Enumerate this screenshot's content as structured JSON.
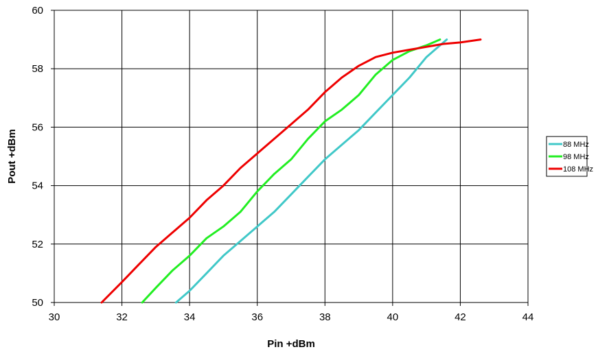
{
  "chart_data": {
    "type": "line",
    "xlabel": "Pin +dBm",
    "ylabel": "Pout +dBm",
    "xlim": [
      30,
      44
    ],
    "ylim": [
      50,
      60
    ],
    "xticks": [
      30,
      32,
      34,
      36,
      38,
      40,
      42,
      44
    ],
    "yticks": [
      50,
      52,
      54,
      56,
      58,
      60
    ],
    "grid": true,
    "legend_position": "right",
    "series": [
      {
        "name": "88 MHz",
        "color": "#40c8c8",
        "points": [
          [
            33.6,
            50.0
          ],
          [
            34.0,
            50.4
          ],
          [
            34.5,
            51.0
          ],
          [
            35.0,
            51.6
          ],
          [
            35.5,
            52.1
          ],
          [
            36.0,
            52.6
          ],
          [
            36.5,
            53.1
          ],
          [
            37.0,
            53.7
          ],
          [
            37.5,
            54.3
          ],
          [
            38.0,
            54.9
          ],
          [
            38.5,
            55.4
          ],
          [
            39.0,
            55.9
          ],
          [
            39.5,
            56.5
          ],
          [
            40.0,
            57.1
          ],
          [
            40.5,
            57.7
          ],
          [
            41.0,
            58.4
          ],
          [
            41.3,
            58.7
          ],
          [
            41.6,
            59.0
          ]
        ]
      },
      {
        "name": "98 MHz",
        "color": "#22ee22",
        "points": [
          [
            32.6,
            50.0
          ],
          [
            33.0,
            50.5
          ],
          [
            33.5,
            51.1
          ],
          [
            34.0,
            51.6
          ],
          [
            34.5,
            52.2
          ],
          [
            35.0,
            52.6
          ],
          [
            35.5,
            53.1
          ],
          [
            36.0,
            53.8
          ],
          [
            36.5,
            54.4
          ],
          [
            37.0,
            54.9
          ],
          [
            37.5,
            55.6
          ],
          [
            38.0,
            56.2
          ],
          [
            38.5,
            56.6
          ],
          [
            39.0,
            57.1
          ],
          [
            39.5,
            57.8
          ],
          [
            40.0,
            58.3
          ],
          [
            40.5,
            58.6
          ],
          [
            41.0,
            58.8
          ],
          [
            41.4,
            59.0
          ]
        ]
      },
      {
        "name": "108 MHz",
        "color": "#ee0000",
        "points": [
          [
            31.4,
            50.0
          ],
          [
            32.0,
            50.7
          ],
          [
            32.5,
            51.3
          ],
          [
            33.0,
            51.9
          ],
          [
            33.5,
            52.4
          ],
          [
            34.0,
            52.9
          ],
          [
            34.5,
            53.5
          ],
          [
            35.0,
            54.0
          ],
          [
            35.5,
            54.6
          ],
          [
            36.0,
            55.1
          ],
          [
            36.5,
            55.6
          ],
          [
            37.0,
            56.1
          ],
          [
            37.5,
            56.6
          ],
          [
            38.0,
            57.2
          ],
          [
            38.5,
            57.7
          ],
          [
            39.0,
            58.1
          ],
          [
            39.5,
            58.4
          ],
          [
            40.0,
            58.55
          ],
          [
            40.5,
            58.65
          ],
          [
            41.0,
            58.75
          ],
          [
            41.5,
            58.85
          ],
          [
            42.0,
            58.9
          ],
          [
            42.6,
            59.0
          ]
        ]
      }
    ]
  }
}
